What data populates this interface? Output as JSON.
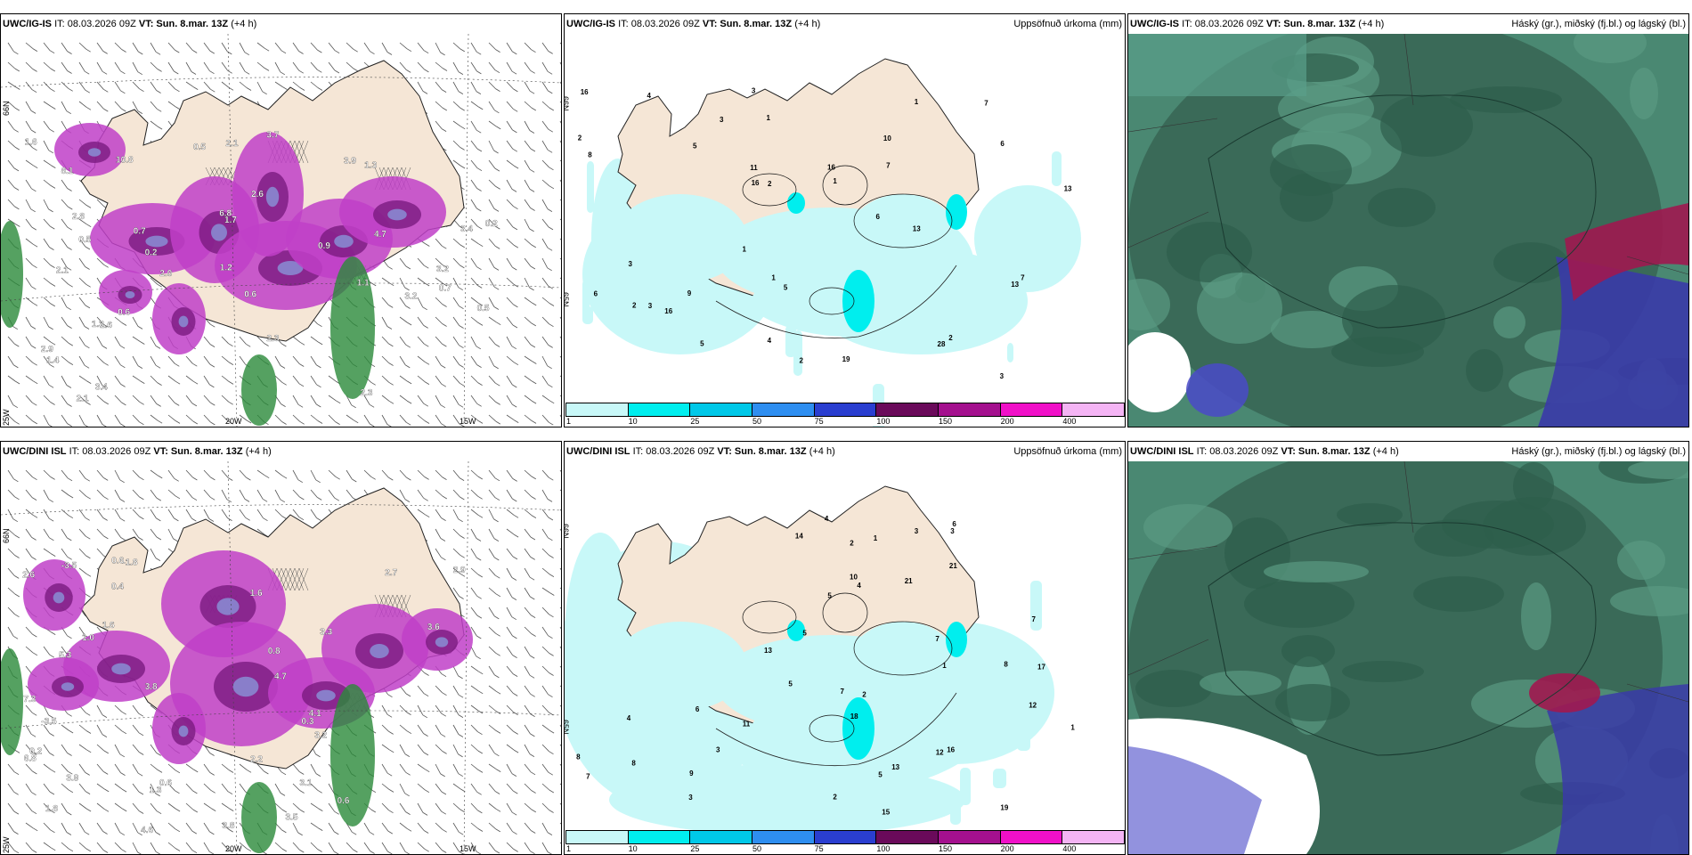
{
  "rows": [
    {
      "model": "UWC/IG-IS",
      "it_text": "IT: 08.03.2026 09Z",
      "vt_label": "VT: Sun. 8.mar. 13Z",
      "lead": "(+4 h)",
      "temp_labels": [
        "1.7",
        "1.6",
        "1.3",
        "2.0",
        "2.8",
        "3.9",
        "3.7",
        "3.2",
        "4.7",
        "6.8",
        "10.8",
        "3.4",
        "8.1",
        "3.2",
        "2.1",
        "0.5",
        "1.2",
        "1.6",
        "1.3",
        "0.7",
        "3.4",
        "0.6",
        "2.1",
        "0.5",
        "0.6",
        "0.5",
        "0.7",
        "2.9",
        "2.3",
        "1.4",
        "2.3",
        "2.6",
        "2.1",
        "1.1",
        "0.9",
        "0.2",
        "0.2"
      ],
      "precip_labels": [
        "5",
        "6",
        "6",
        "3",
        "2",
        "5",
        "10",
        "16",
        "4",
        "6",
        "3",
        "7",
        "9",
        "13",
        "16",
        "1",
        "1",
        "19",
        "16",
        "5",
        "1",
        "1",
        "2",
        "13",
        "13",
        "11",
        "16",
        "2",
        "3",
        "4",
        "28",
        "7",
        "7",
        "8",
        "3",
        "2",
        "3",
        "1",
        "2"
      ],
      "lon_labels": [
        "20W",
        "15W",
        "25W"
      ],
      "lat_labels": [
        "66N",
        "65N"
      ]
    },
    {
      "model": "UWC/DINI ISL",
      "it_text": "IT: 08.03.2026 09Z",
      "vt_label": "VT: Sun. 8.mar. 13Z",
      "lead": "(+4 h)",
      "temp_labels": [
        "1.8",
        "2.2",
        "1.3",
        "3.2",
        "2.6",
        "2.7",
        "2.9",
        "1.6",
        "-1.8",
        "-3.5",
        "0.8",
        "0.6",
        "5.3",
        "0.3",
        "3.6",
        "7.3",
        "3.9",
        "4.7",
        "4.6",
        "4.1",
        "3.8",
        "6.8",
        "3.1",
        "3.8",
        "3.5",
        "1.6",
        "1.0",
        "0.6",
        "-3.5",
        "0.2",
        "3.3",
        "0.4",
        "0.6"
      ],
      "precip_labels": [
        "8",
        "1",
        "2",
        "4",
        "3",
        "5",
        "7",
        "7",
        "8",
        "5",
        "2",
        "3",
        "4",
        "3",
        "9",
        "12",
        "13",
        "10",
        "7",
        "8",
        "6",
        "5",
        "13",
        "19",
        "16",
        "15",
        "17",
        "12",
        "11",
        "21",
        "21",
        "18",
        "14",
        "7",
        "6",
        "1",
        "4",
        "3",
        "2",
        "1",
        "5"
      ],
      "lon_labels": [
        "20W",
        "15W",
        "25W"
      ],
      "lat_labels": [
        "66N",
        "65N"
      ]
    }
  ],
  "precip_panel_title": "Uppsöfnuð úrkoma (mm)",
  "cloud_panel_title": "Háský (gr.), miðský (fj.bl.) og lágský (bl.)",
  "colorbar": {
    "ticks": [
      "1",
      "10",
      "25",
      "50",
      "75",
      "100",
      "150",
      "200",
      "400"
    ],
    "colors": [
      "#c8f8f8",
      "#00eeee",
      "#00c8e8",
      "#2e8ef0",
      "#2a3ed0",
      "#6a0a5a",
      "#a4108e",
      "#f010c8",
      "#f4b4f4"
    ]
  },
  "colors": {
    "land": "#f5e6d6",
    "precip_light": "#c8f8f8",
    "temp_purple": "#c040c8",
    "temp_dark": "#7a1a80",
    "wet_green": "#2a8a3a",
    "cloud_high": "#3a6a58",
    "cloud_mid": "#a01850",
    "cloud_low": "#4a4ac8"
  }
}
